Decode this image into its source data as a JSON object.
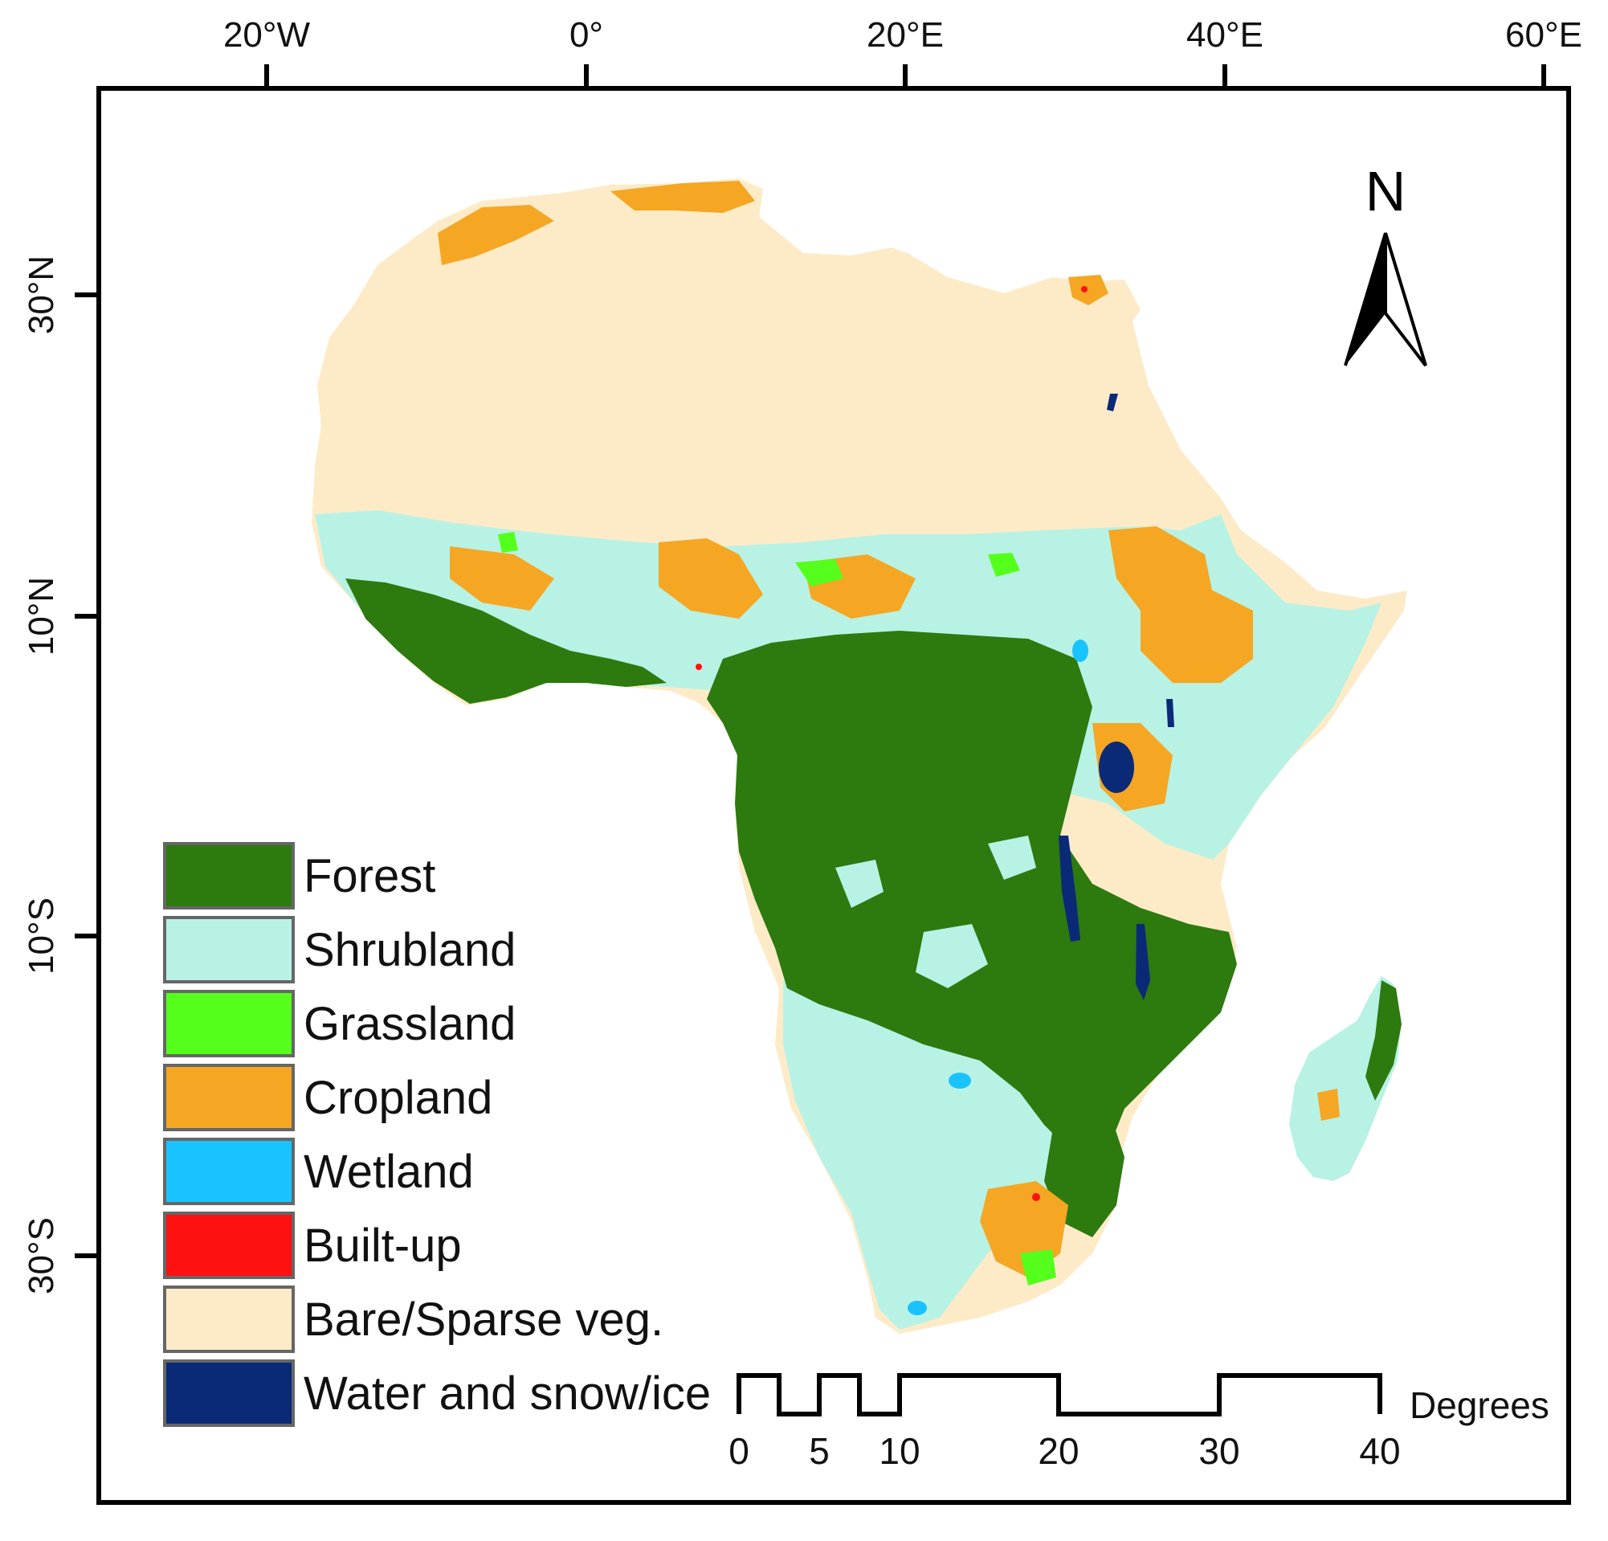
{
  "map": {
    "top_ticks": [
      "20°W",
      "0°",
      "20°E",
      "40°E",
      "60°E"
    ],
    "left_ticks": [
      "30°N",
      "10°N",
      "10°S",
      "30°S"
    ],
    "north_label": "N",
    "legend": [
      {
        "label": "Forest",
        "color": "#2d7a0f"
      },
      {
        "label": "Shrubland",
        "color": "#b8f2e4"
      },
      {
        "label": "Grassland",
        "color": "#55ff1c"
      },
      {
        "label": "Cropland",
        "color": "#f5a623"
      },
      {
        "label": "Wetland",
        "color": "#19c3ff"
      },
      {
        "label": "Built-up",
        "color": "#ff1111"
      },
      {
        "label": "Bare/Sparse veg.",
        "color": "#fdebc8"
      },
      {
        "label": "Water and snow/ice",
        "color": "#0a2a78"
      }
    ],
    "scale_bar": {
      "ticks": [
        "0",
        "5",
        "10",
        "20",
        "30",
        "40"
      ],
      "unit": "Degrees"
    }
  }
}
